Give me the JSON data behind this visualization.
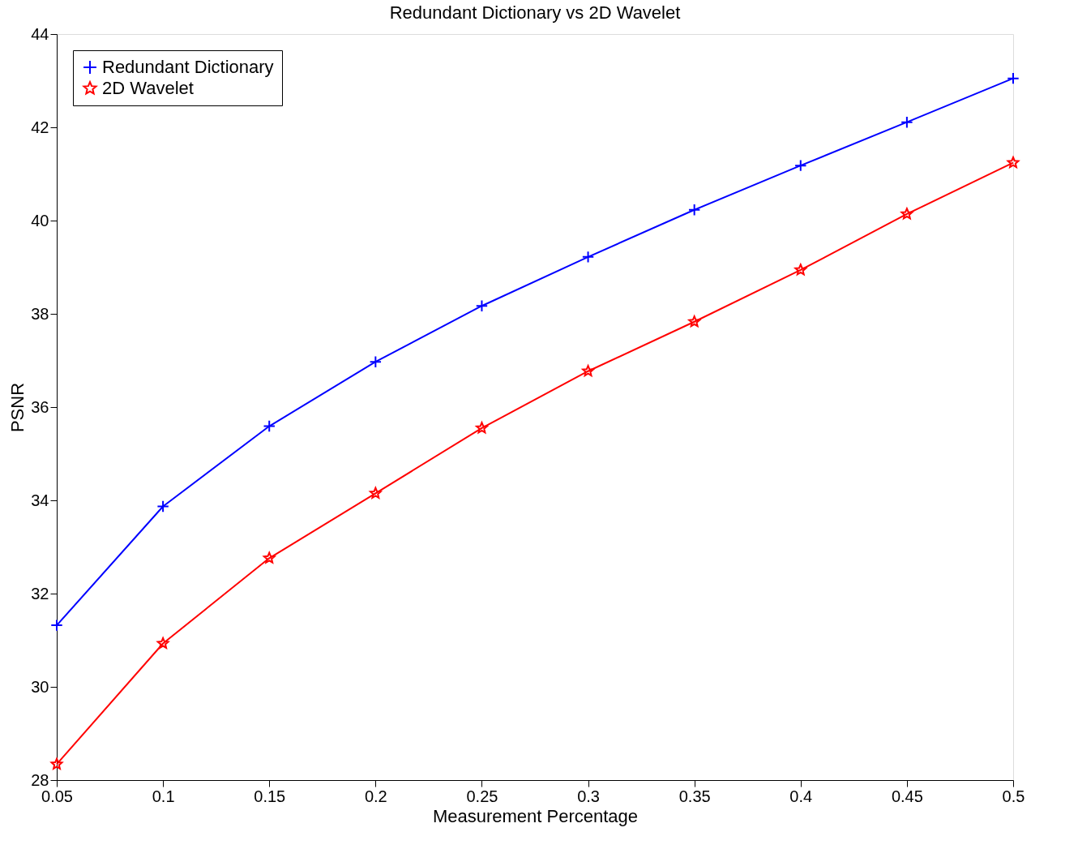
{
  "chart_data": {
    "type": "line",
    "title": "Redundant Dictionary vs  2D Wavelet",
    "xlabel": "Measurement Percentage",
    "ylabel": "PSNR",
    "x": [
      0.05,
      0.1,
      0.15,
      0.2,
      0.25,
      0.3,
      0.35,
      0.4,
      0.45,
      0.5
    ],
    "series": [
      {
        "name": "Redundant Dictionary",
        "color": "#0000ff",
        "marker": "cross",
        "values": [
          31.32,
          33.87,
          35.59,
          36.97,
          38.17,
          39.22,
          40.23,
          41.18,
          42.11,
          43.05
        ]
      },
      {
        "name": "2D Wavelet",
        "color": "#ff0000",
        "marker": "star",
        "values": [
          28.34,
          30.93,
          32.76,
          34.15,
          35.55,
          36.77,
          37.83,
          38.94,
          40.14,
          41.24
        ]
      }
    ],
    "xlim": [
      0.05,
      0.5
    ],
    "xticks": [
      0.05,
      0.1,
      0.15,
      0.2,
      0.25,
      0.3,
      0.35,
      0.4,
      0.45,
      0.5
    ],
    "ylim": [
      28,
      44
    ],
    "yticks": [
      28,
      30,
      32,
      34,
      36,
      38,
      40,
      42,
      44
    ],
    "grid": false,
    "legend": "top left",
    "line_style": "solid"
  }
}
